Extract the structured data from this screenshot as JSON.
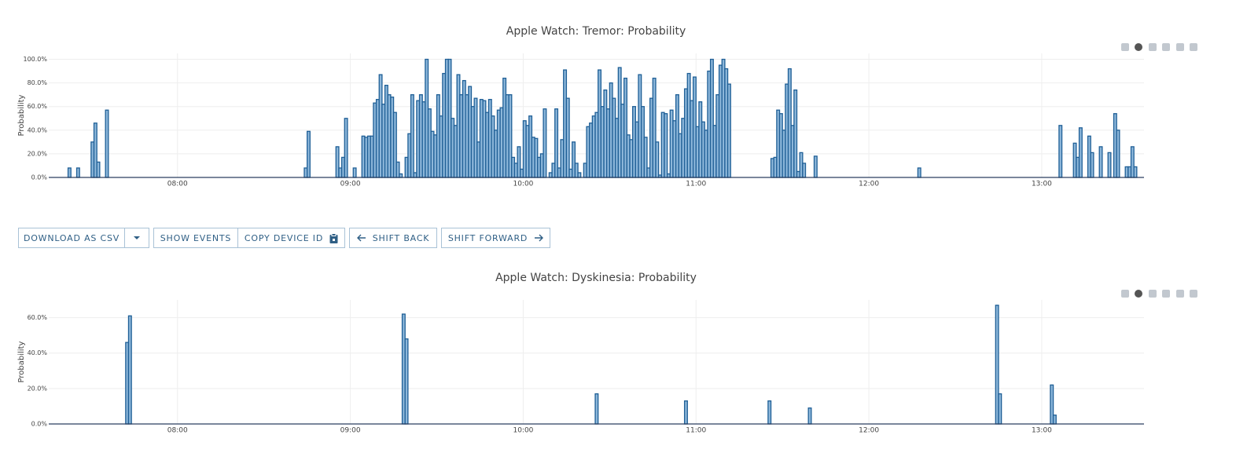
{
  "chart_data": [
    {
      "type": "step-area",
      "title": "Apple Watch: Tremor: Probability",
      "y_label": "Probability",
      "color": "#1f5f96",
      "fill": "#8db7da",
      "xlim": [
        435.3,
        815.5
      ],
      "xticks": [
        {
          "value": 480,
          "label": "08:00"
        },
        {
          "value": 540,
          "label": "09:00"
        },
        {
          "value": 600,
          "label": "10:00"
        },
        {
          "value": 660,
          "label": "11:00"
        },
        {
          "value": 720,
          "label": "12:00"
        },
        {
          "value": 780,
          "label": "13:00"
        }
      ],
      "ylim": [
        0,
        105
      ],
      "yticks": [
        {
          "value": 0,
          "label": "0.0%"
        },
        {
          "value": 20,
          "label": "20.0%"
        },
        {
          "value": 40,
          "label": "40.0%"
        },
        {
          "value": 60,
          "label": "60.0%"
        },
        {
          "value": 80,
          "label": "80.0%"
        },
        {
          "value": 100,
          "label": "100.0%"
        }
      ],
      "grid": true,
      "x": [
        442,
        443,
        445,
        446,
        450,
        451,
        452,
        453,
        455,
        456,
        524,
        525,
        526,
        535,
        536,
        537,
        538,
        539,
        541,
        542,
        544,
        545,
        546,
        547,
        548,
        549,
        550,
        551,
        552,
        553,
        554,
        555,
        556,
        557,
        558,
        559,
        560,
        561,
        562,
        563,
        564,
        565,
        566,
        567,
        568,
        569,
        570,
        571,
        572,
        573,
        574,
        575,
        576,
        577,
        578,
        579,
        580,
        581,
        582,
        583,
        584,
        585,
        586,
        587,
        588,
        589,
        590,
        591,
        592,
        593,
        594,
        595,
        596,
        597,
        598,
        599,
        600,
        601,
        602,
        603,
        604,
        605,
        606,
        607,
        608,
        609,
        610,
        611,
        612,
        613,
        614,
        615,
        616,
        617,
        618,
        619,
        620,
        621,
        622,
        623,
        624,
        625,
        626,
        627,
        628,
        629,
        630,
        631,
        632,
        633,
        634,
        635,
        636,
        637,
        638,
        639,
        640,
        641,
        642,
        643,
        644,
        645,
        646,
        647,
        648,
        649,
        650,
        651,
        652,
        653,
        654,
        655,
        656,
        657,
        658,
        659,
        660,
        661,
        662,
        663,
        664,
        665,
        666,
        667,
        668,
        669,
        670,
        671,
        672,
        686,
        687,
        688,
        689,
        690,
        691,
        692,
        693,
        694,
        695,
        696,
        697,
        698,
        701,
        702,
        737,
        738,
        786,
        787,
        791,
        792,
        793,
        794,
        796,
        797,
        798,
        800,
        801,
        803,
        804,
        805,
        806,
        807,
        809,
        810,
        811,
        812,
        813
      ],
      "values": [
        8,
        0,
        8,
        0,
        30,
        46,
        13,
        0,
        57,
        0,
        8,
        39,
        0,
        26,
        8,
        17,
        50,
        0,
        8,
        0,
        35,
        34,
        35,
        35,
        63,
        66,
        87,
        62,
        78,
        70,
        68,
        55,
        13,
        3,
        0,
        17,
        37,
        70,
        4,
        65,
        70,
        64,
        100,
        58,
        39,
        36,
        70,
        52,
        88,
        100,
        100,
        50,
        44,
        87,
        70,
        82,
        70,
        77,
        60,
        67,
        30,
        66,
        65,
        55,
        66,
        52,
        40,
        57,
        59,
        84,
        70,
        70,
        17,
        12,
        26,
        7,
        48,
        44,
        52,
        34,
        33,
        17,
        20,
        58,
        0,
        4,
        12,
        58,
        8,
        32,
        91,
        67,
        7,
        30,
        12,
        4,
        0,
        12,
        43,
        46,
        52,
        55,
        91,
        60,
        74,
        58,
        80,
        67,
        50,
        93,
        62,
        84,
        36,
        32,
        60,
        47,
        87,
        60,
        34,
        8,
        67,
        84,
        30,
        2,
        55,
        54,
        3,
        57,
        48,
        70,
        37,
        50,
        75,
        88,
        65,
        85,
        43,
        64,
        47,
        40,
        90,
        100,
        44,
        70,
        95,
        100,
        92,
        79,
        0,
        16,
        17,
        57,
        54,
        40,
        79,
        92,
        44,
        74,
        5,
        21,
        12,
        0,
        18,
        0,
        8,
        0,
        44,
        0,
        29,
        17,
        42,
        0,
        35,
        21,
        0,
        26,
        0,
        21,
        0,
        54,
        40,
        0,
        9,
        9,
        26,
        9,
        0
      ]
    },
    {
      "type": "step-area",
      "title": "Apple Watch: Dyskinesia: Probability",
      "y_label": "Probability",
      "color": "#1f5f96",
      "fill": "#8db7da",
      "xlim": [
        435.3,
        815.5
      ],
      "xticks": [
        {
          "value": 480,
          "label": "08:00"
        },
        {
          "value": 540,
          "label": "09:00"
        },
        {
          "value": 600,
          "label": "10:00"
        },
        {
          "value": 660,
          "label": "11:00"
        },
        {
          "value": 720,
          "label": "12:00"
        },
        {
          "value": 780,
          "label": "13:00"
        }
      ],
      "ylim": [
        0,
        70
      ],
      "yticks": [
        {
          "value": 0,
          "label": "0.0%"
        },
        {
          "value": 20,
          "label": "20.0%"
        },
        {
          "value": 40,
          "label": "40.0%"
        },
        {
          "value": 60,
          "label": "60.0%"
        }
      ],
      "grid": true,
      "x": [
        462,
        463,
        464,
        558,
        559,
        560,
        625,
        626,
        656,
        657,
        685,
        686,
        699,
        700,
        764,
        765,
        766,
        783,
        784,
        785
      ],
      "values": [
        46,
        61,
        0,
        62,
        48,
        0,
        17,
        0,
        13,
        0,
        13,
        0,
        9,
        0,
        67,
        17,
        0,
        22,
        5,
        0
      ]
    }
  ],
  "toolbar": {
    "buttons": [
      "DOWNLOAD AS CSV",
      "SHOW EVENTS",
      "COPY DEVICE ID",
      "SHIFT BACK",
      "SHIFT FORWARD"
    ]
  }
}
